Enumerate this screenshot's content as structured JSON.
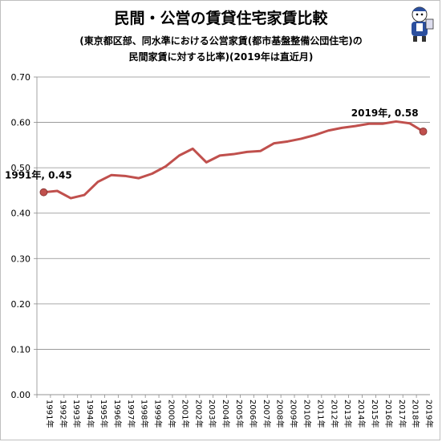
{
  "chart_data": {
    "type": "line",
    "title": "民間・公営の賃貸住宅家賃比較",
    "subtitle_line1": "(東京都区部、同水準における公営家賃(都市基盤整備公団住宅)の",
    "subtitle_line2": "民間家賃に対する比率)(2019年は直近月)",
    "categories": [
      "1991年",
      "1992年",
      "1993年",
      "1994年",
      "1995年",
      "1996年",
      "1997年",
      "1998年",
      "1999年",
      "2000年",
      "2001年",
      "2002年",
      "2003年",
      "2004年",
      "2005年",
      "2006年",
      "2007年",
      "2008年",
      "2009年",
      "2010年",
      "2011年",
      "2012年",
      "2013年",
      "2014年",
      "2015年",
      "2016年",
      "2017年",
      "2018年",
      "2019年"
    ],
    "series": [
      {
        "values": [
          0.446,
          0.449,
          0.433,
          0.44,
          0.469,
          0.484,
          0.482,
          0.477,
          0.487,
          0.503,
          0.527,
          0.542,
          0.512,
          0.527,
          0.53,
          0.535,
          0.537,
          0.554,
          0.558,
          0.564,
          0.572,
          0.582,
          0.588,
          0.592,
          0.597,
          0.597,
          0.602,
          0.598,
          0.58
        ],
        "color": "#c0504d"
      }
    ],
    "ylim": [
      0,
      0.7
    ],
    "yticks": [
      "0.00",
      "0.10",
      "0.20",
      "0.30",
      "0.40",
      "0.50",
      "0.60",
      "0.70"
    ],
    "grid": true,
    "annotations": [
      {
        "label": "1991年, 0.45",
        "index": 0
      },
      {
        "label": "2019年, 0.58",
        "index": 28
      }
    ]
  },
  "icons": {
    "mascot": "mascot-icon"
  }
}
